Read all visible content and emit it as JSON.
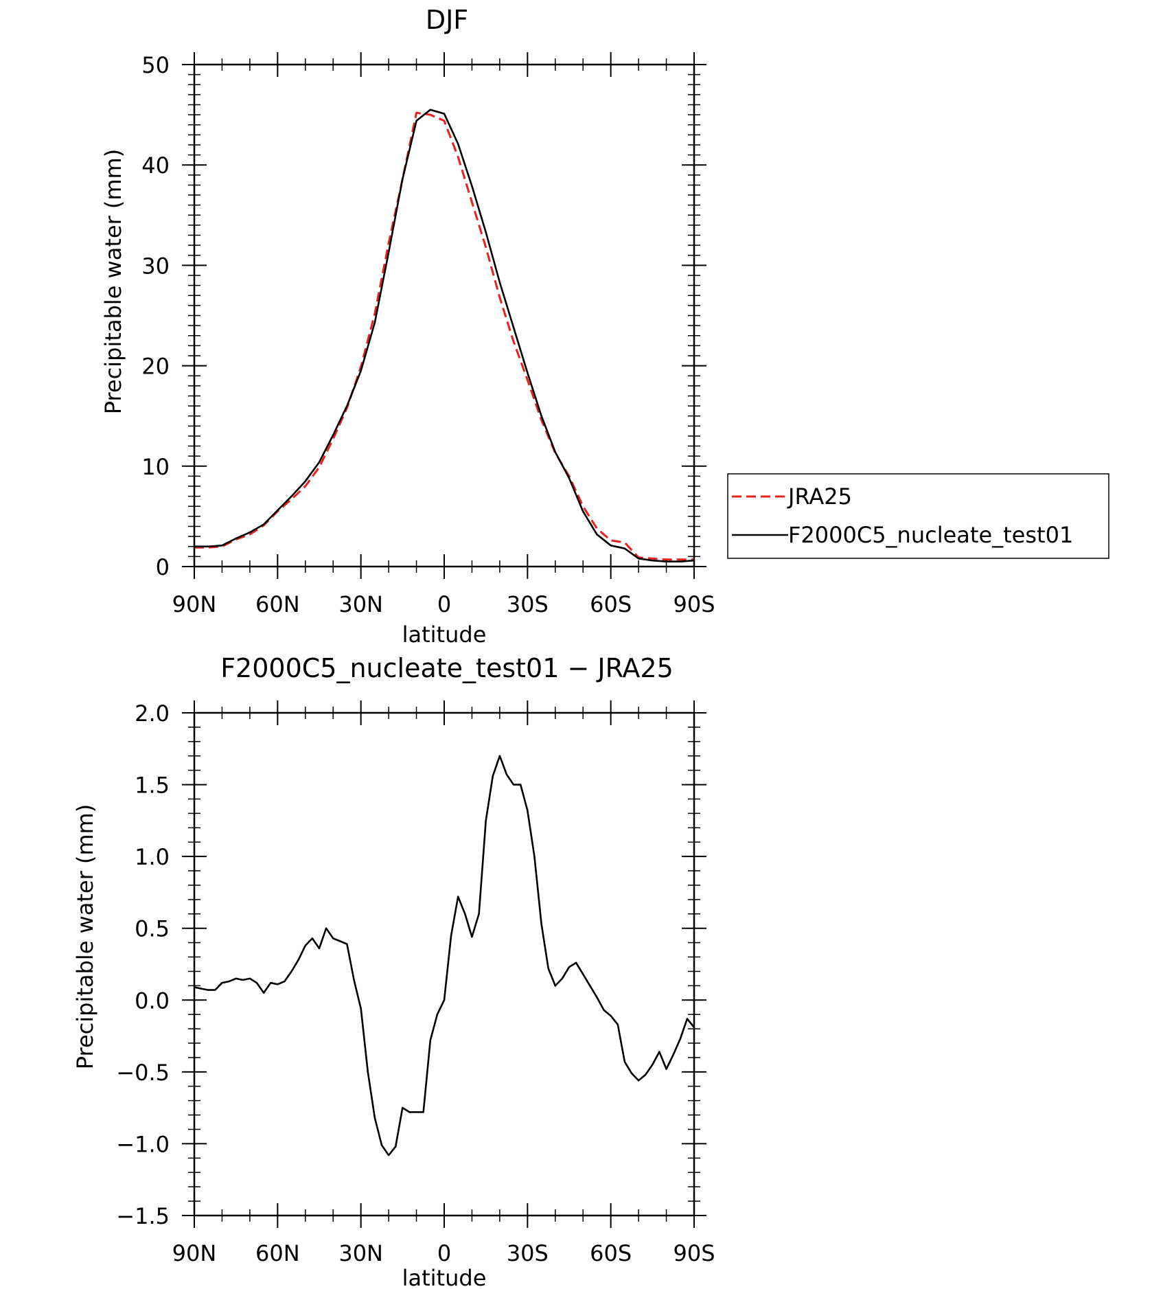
{
  "chart_data": [
    {
      "type": "line",
      "title": "DJF",
      "xlabel": "latitude",
      "ylabel": "Precipitable water (mm)",
      "xlim": [
        90,
        -90
      ],
      "ylim": [
        0,
        50
      ],
      "x_ticks": [
        90,
        60,
        30,
        0,
        -30,
        -60,
        -90
      ],
      "x_tick_labels": [
        "90N",
        "60N",
        "30N",
        "0",
        "30S",
        "60S",
        "90S"
      ],
      "y_ticks": [
        0,
        10,
        20,
        30,
        40,
        50
      ],
      "y_tick_labels": [
        "0",
        "10",
        "20",
        "30",
        "40",
        "50"
      ],
      "legend_position": "right",
      "grid": false,
      "series": [
        {
          "name": "JRA25",
          "color": "#e8221b",
          "dash": "dashed",
          "x": [
            90,
            85,
            80,
            75,
            70,
            65,
            60,
            55,
            50,
            45,
            40,
            35,
            30,
            25,
            20,
            15,
            10,
            5,
            0,
            -5,
            -10,
            -15,
            -20,
            -25,
            -30,
            -35,
            -40,
            -45,
            -50,
            -55,
            -60,
            -65,
            -70,
            -75,
            -80,
            -85,
            -90
          ],
          "values": [
            1.9,
            1.9,
            2.0,
            2.7,
            3.2,
            4.1,
            5.5,
            6.7,
            8.0,
            9.9,
            12.7,
            15.8,
            19.9,
            25.2,
            32.2,
            38.6,
            45.2,
            45.0,
            44.4,
            40.8,
            36.3,
            31.8,
            26.8,
            22.4,
            18.6,
            14.6,
            11.3,
            9.0,
            6.0,
            3.8,
            2.6,
            2.4,
            0.9,
            0.8,
            0.7,
            0.7,
            0.7
          ]
        },
        {
          "name": "F2000C5_nucleate_test01",
          "color": "#000000",
          "dash": "solid",
          "x": [
            90,
            85,
            80,
            75,
            70,
            65,
            60,
            55,
            50,
            45,
            40,
            35,
            30,
            25,
            20,
            15,
            10,
            5,
            0,
            -5,
            -10,
            -15,
            -20,
            -25,
            -30,
            -35,
            -40,
            -45,
            -50,
            -55,
            -60,
            -65,
            -70,
            -75,
            -80,
            -85,
            -90
          ],
          "values": [
            2.0,
            2.0,
            2.1,
            2.8,
            3.4,
            4.2,
            5.6,
            7.0,
            8.5,
            10.4,
            13.1,
            16.0,
            19.5,
            24.3,
            31.3,
            38.6,
            44.4,
            45.5,
            45.1,
            42.1,
            37.9,
            33.3,
            28.3,
            23.8,
            19.3,
            15.0,
            11.4,
            8.8,
            5.5,
            3.2,
            2.1,
            1.8,
            0.8,
            0.6,
            0.5,
            0.5,
            0.6
          ]
        }
      ]
    },
    {
      "type": "line",
      "title": "F2000C5_nucleate_test01 − JRA25",
      "xlabel": "latitude",
      "ylabel": "Precipitable water (mm)",
      "xlim": [
        90,
        -90
      ],
      "ylim": [
        -1.5,
        2.0
      ],
      "x_ticks": [
        90,
        60,
        30,
        0,
        -30,
        -60,
        -90
      ],
      "x_tick_labels": [
        "90N",
        "60N",
        "30N",
        "0",
        "30S",
        "60S",
        "90S"
      ],
      "y_ticks": [
        -1.5,
        -1.0,
        -0.5,
        0.0,
        0.5,
        1.0,
        1.5,
        2.0
      ],
      "y_tick_labels": [
        "−1.5",
        "−1.0",
        "−0.5",
        "0.0",
        "0.5",
        "1.0",
        "1.5",
        "2.0"
      ],
      "grid": false,
      "series": [
        {
          "color": "#000000",
          "dash": "solid",
          "x": [
            90,
            87.5,
            85,
            82.5,
            80,
            77.5,
            75,
            72.5,
            70,
            67.5,
            65,
            62.5,
            60,
            57.5,
            55,
            52.5,
            50,
            47.5,
            45,
            42.5,
            40,
            37.5,
            35,
            32.5,
            30,
            27.5,
            25,
            22.5,
            20,
            17.5,
            15,
            12.5,
            10,
            7.5,
            5,
            2.5,
            0,
            -2.5,
            -5,
            -7.5,
            -10,
            -12.5,
            -15,
            -17.5,
            -20,
            -22.5,
            -25,
            -27.5,
            -30,
            -32.5,
            -35,
            -37.5,
            -40,
            -42.5,
            -45,
            -47.5,
            -50,
            -52.5,
            -55,
            -57.5,
            -60,
            -62.5,
            -65,
            -67.5,
            -70,
            -72.5,
            -75,
            -77.5,
            -80,
            -82.5,
            -85,
            -87.5,
            -90
          ],
          "values": [
            0.09,
            0.08,
            0.07,
            0.07,
            0.12,
            0.13,
            0.15,
            0.14,
            0.15,
            0.12,
            0.05,
            0.12,
            0.11,
            0.13,
            0.2,
            0.28,
            0.38,
            0.43,
            0.36,
            0.5,
            0.43,
            0.41,
            0.39,
            0.14,
            -0.06,
            -0.5,
            -0.82,
            -1.01,
            -1.08,
            -1.02,
            -0.75,
            -0.78,
            -0.78,
            -0.78,
            -0.28,
            -0.1,
            0.0,
            0.45,
            0.72,
            0.6,
            0.44,
            0.6,
            1.25,
            1.56,
            1.7,
            1.57,
            1.5,
            1.5,
            1.32,
            1.0,
            0.53,
            0.22,
            0.1,
            0.15,
            0.23,
            0.26,
            0.18,
            0.1,
            0.02,
            -0.07,
            -0.11,
            -0.17,
            -0.43,
            -0.51,
            -0.56,
            -0.52,
            -0.45,
            -0.36,
            -0.48,
            -0.38,
            -0.27,
            -0.13,
            -0.19
          ]
        }
      ]
    }
  ]
}
